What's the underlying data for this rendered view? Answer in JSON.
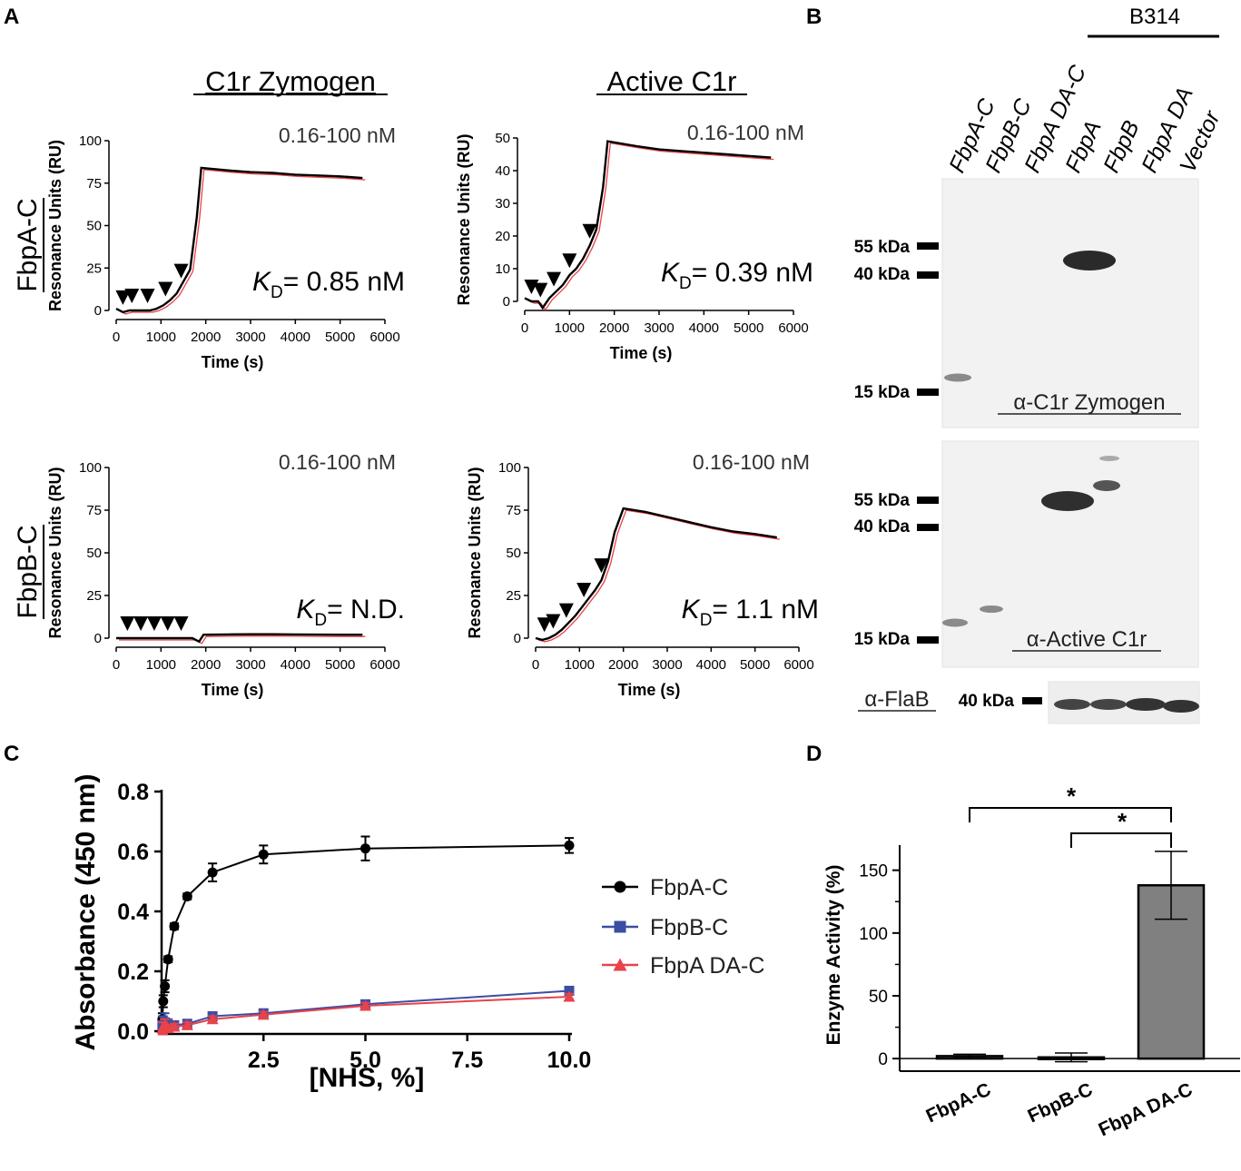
{
  "panel_labels": {
    "a": "A",
    "b": "B",
    "c": "C",
    "d": "D"
  },
  "panel_a": {
    "col_headers": [
      "C1r Zymogen",
      "Active C1r"
    ],
    "row_labels": [
      "FbpA-C",
      "FbpB-C"
    ],
    "axis_ylabel": "Resonance Units (RU)",
    "axis_xlabel": "Time (s)",
    "kd_symbol": "K",
    "kd_sub": "D"
  },
  "panel_b": {
    "strain": "B314",
    "lanes": [
      "FbpA-C",
      "FbpB-C",
      "FbpA DA-C",
      "FbpA",
      "FbpB",
      "FbpA DA",
      "Vector"
    ],
    "blot1": {
      "label": "α-C1r Zymogen",
      "markers": [
        "55 kDa",
        "40 kDa",
        "15 kDa"
      ]
    },
    "blot2": {
      "label": "α-Active C1r",
      "markers": [
        "55 kDa",
        "40 kDa",
        "15 kDa"
      ]
    },
    "blot3": {
      "label": "α-FlaB",
      "markers": [
        "40 kDa"
      ]
    }
  },
  "chart_data": [
    {
      "type": "line",
      "panel": "A",
      "title": "C1r Zymogen / FbpA-C",
      "concentration": "0.16-100 nM",
      "kd": "= 0.85 nM",
      "xlabel": "Time (s)",
      "ylabel": "Resonance Units (RU)",
      "xlim": [
        0,
        6000
      ],
      "ylim": [
        0,
        100
      ],
      "xticks": [
        0,
        1000,
        2000,
        3000,
        4000,
        5000,
        6000
      ],
      "yticks": [
        0,
        25,
        50,
        75,
        100
      ],
      "x": [
        0,
        150,
        300,
        450,
        600,
        750,
        900,
        1050,
        1200,
        1350,
        1500,
        1650,
        1800,
        1900,
        2500,
        3000,
        3500,
        4000,
        4500,
        5000,
        5500
      ],
      "y": [
        1,
        -1,
        0,
        0,
        0,
        0,
        1,
        3,
        6,
        10,
        17,
        24,
        55,
        84,
        82.5,
        81.5,
        81,
        80,
        79.5,
        79,
        78
      ],
      "injections": [
        150,
        350,
        700,
        1100,
        1450
      ]
    },
    {
      "type": "line",
      "panel": "A",
      "title": "Active C1r / FbpA-C",
      "concentration": "0.16-100 nM",
      "kd": "= 0.39 nM",
      "xlabel": "Time (s)",
      "ylabel": "Resonance Units (RU)",
      "xlim": [
        0,
        6000
      ],
      "ylim": [
        0,
        50
      ],
      "xticks": [
        0,
        1000,
        2000,
        3000,
        4000,
        5000,
        6000
      ],
      "yticks": [
        0,
        10,
        20,
        30,
        40,
        50
      ],
      "x": [
        0,
        150,
        300,
        400,
        550,
        700,
        850,
        1000,
        1150,
        1300,
        1450,
        1600,
        1750,
        1850,
        2500,
        3000,
        3500,
        4000,
        4500,
        5000,
        5500
      ],
      "y": [
        1,
        0,
        0,
        -2,
        1,
        3,
        5,
        8,
        10,
        13,
        17,
        22,
        35,
        49,
        47.5,
        46.5,
        46,
        45.5,
        45,
        44.5,
        44
      ],
      "injections": [
        150,
        350,
        650,
        1000,
        1450
      ]
    },
    {
      "type": "line",
      "panel": "A",
      "title": "C1r Zymogen / FbpB-C",
      "concentration": "0.16-100 nM",
      "kd": "= N.D.",
      "xlabel": "Time (s)",
      "ylabel": "Resonance Units (RU)",
      "xlim": [
        0,
        6000
      ],
      "ylim": [
        0,
        100
      ],
      "xticks": [
        0,
        1000,
        2000,
        3000,
        4000,
        5000,
        6000
      ],
      "yticks": [
        0,
        25,
        50,
        75,
        100
      ],
      "x": [
        0,
        300,
        600,
        900,
        1200,
        1500,
        1700,
        1850,
        1950,
        2500,
        3000,
        3500,
        4000,
        4500,
        5000,
        5500
      ],
      "y": [
        0,
        0,
        0,
        0,
        0,
        0,
        0,
        -2,
        2,
        2.2,
        2.3,
        2.3,
        2.2,
        2.1,
        2,
        2
      ],
      "injections": [
        250,
        550,
        850,
        1150,
        1450
      ]
    },
    {
      "type": "line",
      "panel": "A",
      "title": "Active C1r / FbpB-C",
      "concentration": "0.16-100 nM",
      "kd": "= 1.1 nM",
      "xlabel": "Time (s)",
      "ylabel": "Resonance Units (RU)",
      "xlim": [
        0,
        6000
      ],
      "ylim": [
        0,
        100
      ],
      "xticks": [
        0,
        1000,
        2000,
        3000,
        4000,
        5000,
        6000
      ],
      "yticks": [
        0,
        25,
        50,
        75,
        100
      ],
      "x": [
        0,
        150,
        300,
        450,
        600,
        750,
        900,
        1050,
        1200,
        1350,
        1500,
        1650,
        1800,
        2000,
        2500,
        3000,
        3500,
        4000,
        4500,
        5000,
        5500
      ],
      "y": [
        0,
        -1,
        0,
        2,
        5,
        9,
        13,
        18,
        23,
        28,
        34,
        45,
        62,
        76,
        74,
        71,
        68,
        65,
        62.5,
        61,
        59
      ],
      "injections": [
        200,
        400,
        700,
        1100,
        1500
      ]
    },
    {
      "type": "scatter",
      "panel": "C",
      "xlabel": "[NHS, %]",
      "ylabel": "Absorbance (450 nm)",
      "xlim": [
        0,
        10
      ],
      "ylim": [
        0,
        0.8
      ],
      "xticks": [
        "2.5",
        "5.0",
        "7.5",
        "10.0"
      ],
      "yticks": [
        "0.0",
        "0.2",
        "0.4",
        "0.6",
        "0.8"
      ],
      "x": [
        0.02,
        0.04,
        0.08,
        0.16,
        0.31,
        0.63,
        1.25,
        2.5,
        5.0,
        10.0
      ],
      "series": [
        {
          "name": "FbpA-C",
          "color": "#000000",
          "marker": "circle",
          "values": [
            0.04,
            0.1,
            0.15,
            0.24,
            0.35,
            0.45,
            0.53,
            0.59,
            0.61,
            0.62
          ],
          "errors": [
            0.02,
            0.02,
            0.02,
            0.01,
            0.01,
            0.01,
            0.03,
            0.03,
            0.04,
            0.025
          ]
        },
        {
          "name": "FbpB-C",
          "color": "#3b4ea3",
          "marker": "square",
          "values": [
            0.02,
            0.02,
            0.03,
            0.02,
            0.02,
            0.025,
            0.05,
            0.06,
            0.09,
            0.135
          ],
          "errors": [
            0.03,
            0.03,
            0.03,
            0.02,
            0.01,
            0.01,
            0.01,
            0.01,
            0.01,
            0.01
          ]
        },
        {
          "name": "FbpA DA-C",
          "color": "#e8424a",
          "marker": "triangle",
          "values": [
            0.01,
            0.01,
            0.02,
            0.01,
            0.015,
            0.02,
            0.04,
            0.055,
            0.085,
            0.115
          ],
          "errors": [
            0.02,
            0.02,
            0.02,
            0.01,
            0.01,
            0.01,
            0.01,
            0.01,
            0.01,
            0.01
          ]
        }
      ]
    },
    {
      "type": "bar",
      "panel": "D",
      "categories": [
        "FbpA-C",
        "FbpB-C",
        "FbpA DA-C"
      ],
      "values": [
        2,
        1,
        138
      ],
      "errors": [
        1.5,
        3.5,
        27
      ],
      "ylabel": "Enzyme Activity (%)",
      "ylim": [
        -10,
        170
      ],
      "yticks": [
        0,
        50,
        100,
        150
      ],
      "significance": [
        "*",
        "*"
      ]
    }
  ]
}
